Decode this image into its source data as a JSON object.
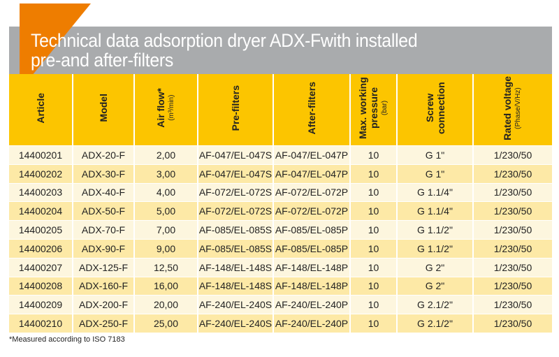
{
  "title": {
    "line1": "Technical data adsorption dryer ADX-Fwith installed",
    "line2": "pre-and after-filters"
  },
  "colors": {
    "accent": "#ee7d00",
    "header": "#fcc500",
    "banner": "#a9abad"
  },
  "headers": [
    {
      "label": "Article",
      "unit": ""
    },
    {
      "label": "Model",
      "unit": ""
    },
    {
      "label": "Air flow*",
      "unit": "(m³/min)"
    },
    {
      "label": "Pre-filters",
      "unit": ""
    },
    {
      "label": "After-filters",
      "unit": ""
    },
    {
      "label": "Max. working pressure",
      "unit": "(bar)"
    },
    {
      "label": "Screw connection",
      "unit": ""
    },
    {
      "label": "Rated voltage",
      "unit": "(Phase/V/Hz)"
    }
  ],
  "rows": [
    [
      "14400201",
      "ADX-20-F",
      "2,00",
      "AF-047/EL-047S",
      "AF-047/EL-047P",
      "10",
      "G 1\"",
      "1/230/50"
    ],
    [
      "14400202",
      "ADX-30-F",
      "3,00",
      "AF-047/EL-047S",
      "AF-047/EL-047P",
      "10",
      "G 1\"",
      "1/230/50"
    ],
    [
      "14400203",
      "ADX-40-F",
      "4,00",
      "AF-072/EL-072S",
      "AF-072/EL-072P",
      "10",
      "G 1.1/4\"",
      "1/230/50"
    ],
    [
      "14400204",
      "ADX-50-F",
      "5,00",
      "AF-072/EL-072S",
      "AF-072/EL-072P",
      "10",
      "G 1.1/4\"",
      "1/230/50"
    ],
    [
      "14400205",
      "ADX-70-F",
      "7,00",
      "AF-085/EL-085S",
      "AF-085/EL-085P",
      "10",
      "G 1.1/2\"",
      "1/230/50"
    ],
    [
      "14400206",
      "ADX-90-F",
      "9,00",
      "AF-085/EL-085S",
      "AF-085/EL-085P",
      "10",
      "G 1.1/2\"",
      "1/230/50"
    ],
    [
      "14400207",
      "ADX-125-F",
      "12,50",
      "AF-148/EL-148S",
      "AF-148/EL-148P",
      "10",
      "G 2\"",
      "1/230/50"
    ],
    [
      "14400208",
      "ADX-160-F",
      "16,00",
      "AF-148/EL-148S",
      "AF-148/EL-148P",
      "10",
      "G 2\"",
      "1/230/50"
    ],
    [
      "14400209",
      "ADX-200-F",
      "20,00",
      "AF-240/EL-240S",
      "AF-240/EL-240P",
      "10",
      "G 2.1/2\"",
      "1/230/50"
    ],
    [
      "14400210",
      "ADX-250-F",
      "25,00",
      "AF-240/EL-240S",
      "AF-240/EL-240P",
      "10",
      "G 2.1/2\"",
      "1/230/50"
    ]
  ],
  "footnote": "*Measured according to ISO 7183"
}
